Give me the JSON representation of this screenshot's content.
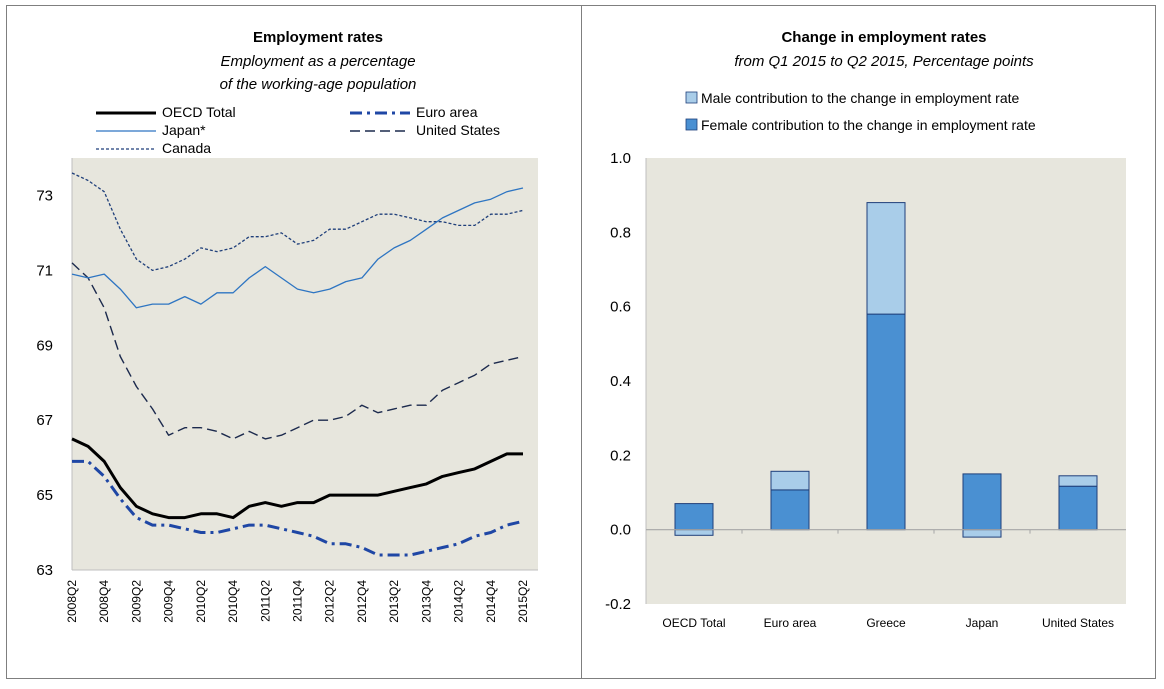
{
  "chart_data": [
    {
      "type": "line",
      "title": "Employment rates",
      "subtitle_line1": "Employment as a percentage",
      "subtitle_line2": "of the working-age population",
      "xlabel": "",
      "ylabel": "",
      "ylim": [
        63,
        74
      ],
      "yticks": [
        "63",
        "65",
        "67",
        "69",
        "71",
        "73"
      ],
      "x": [
        "2008Q2",
        "2008Q3",
        "2008Q4",
        "2009Q1",
        "2009Q2",
        "2009Q3",
        "2009Q4",
        "2010Q1",
        "2010Q2",
        "2010Q3",
        "2010Q4",
        "2011Q1",
        "2011Q2",
        "2011Q3",
        "2011Q4",
        "2012Q1",
        "2012Q2",
        "2012Q3",
        "2012Q4",
        "2013Q1",
        "2013Q2",
        "2013Q3",
        "2013Q4",
        "2014Q1",
        "2014Q2",
        "2014Q3",
        "2014Q4",
        "2015Q1",
        "2015Q2"
      ],
      "xtick_labels": [
        "2008Q2",
        "2008Q4",
        "2009Q2",
        "2009Q4",
        "2010Q2",
        "2010Q4",
        "2011Q2",
        "2011Q4",
        "2012Q2",
        "2012Q4",
        "2013Q2",
        "2013Q4",
        "2014Q2",
        "2014Q4",
        "2015Q2"
      ],
      "series": [
        {
          "name": "OECD Total",
          "color": "#000000",
          "style": "solid-thick",
          "values": [
            66.5,
            66.3,
            65.9,
            65.2,
            64.7,
            64.5,
            64.4,
            64.4,
            64.5,
            64.5,
            64.4,
            64.7,
            64.8,
            64.7,
            64.8,
            64.8,
            65.0,
            65.0,
            65.0,
            65.0,
            65.1,
            65.2,
            65.3,
            65.5,
            65.6,
            65.7,
            65.9,
            66.1,
            66.1
          ]
        },
        {
          "name": "Euro area",
          "color": "#1f47a5",
          "style": "dashdot",
          "values": [
            65.9,
            65.9,
            65.5,
            64.9,
            64.4,
            64.2,
            64.2,
            64.1,
            64.0,
            64.0,
            64.1,
            64.2,
            64.2,
            64.1,
            64.0,
            63.9,
            63.7,
            63.7,
            63.6,
            63.4,
            63.4,
            63.4,
            63.5,
            63.6,
            63.7,
            63.9,
            64.0,
            64.2,
            64.3
          ]
        },
        {
          "name": "Japan*",
          "color": "#2e75c2",
          "style": "solid-thin",
          "values": [
            70.9,
            70.8,
            70.9,
            70.5,
            70.0,
            70.1,
            70.1,
            70.3,
            70.1,
            70.4,
            70.4,
            70.8,
            71.1,
            70.8,
            70.5,
            70.4,
            70.5,
            70.7,
            70.8,
            71.3,
            71.6,
            71.8,
            72.1,
            72.4,
            72.6,
            72.8,
            72.9,
            73.1,
            73.2
          ]
        },
        {
          "name": "United States",
          "color": "#1c2a4d",
          "style": "longdash",
          "values": [
            71.2,
            70.8,
            70.0,
            68.7,
            67.9,
            67.3,
            66.6,
            66.8,
            66.8,
            66.7,
            66.5,
            66.7,
            66.5,
            66.6,
            66.8,
            67.0,
            67.0,
            67.1,
            67.4,
            67.2,
            67.3,
            67.4,
            67.4,
            67.8,
            68.0,
            68.2,
            68.5,
            68.6,
            68.7
          ]
        },
        {
          "name": "Canada",
          "color": "#1f3f7a",
          "style": "shortdash",
          "values": [
            73.6,
            73.4,
            73.1,
            72.1,
            71.3,
            71.0,
            71.1,
            71.3,
            71.6,
            71.5,
            71.6,
            71.9,
            71.9,
            72.0,
            71.7,
            71.8,
            72.1,
            72.1,
            72.3,
            72.5,
            72.5,
            72.4,
            72.3,
            72.3,
            72.2,
            72.2,
            72.5,
            72.5,
            72.6
          ]
        }
      ]
    },
    {
      "type": "bar",
      "stacked": true,
      "title": "Change in employment rates",
      "subtitle": "from Q1 2015 to Q2 2015, Percentage points",
      "xlabel": "",
      "ylabel": "",
      "ylim": [
        -0.2,
        1.0
      ],
      "yticks": [
        "-0.2",
        "0.0",
        "0.2",
        "0.4",
        "0.6",
        "0.8",
        "1.0"
      ],
      "categories": [
        "OECD Total",
        "Euro area",
        "Greece",
        "Japan",
        "United States"
      ],
      "series": [
        {
          "name": "Male contribution to the change in employment rate",
          "color": "#a9cde9",
          "values": [
            -0.015,
            0.05,
            0.3,
            -0.02,
            0.028
          ]
        },
        {
          "name": "Female contribution to the change in employment rate",
          "color": "#4a90d2",
          "values": [
            0.07,
            0.107,
            0.58,
            0.15,
            0.117
          ]
        }
      ]
    }
  ]
}
